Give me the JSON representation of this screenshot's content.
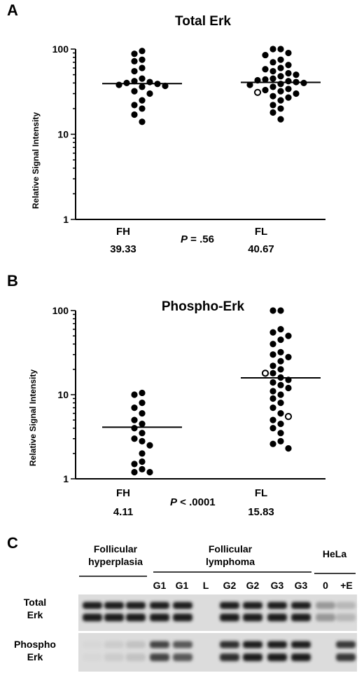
{
  "chart_data": [
    {
      "panel": "A",
      "type": "scatter",
      "title": "Total Erk",
      "ylabel": "Relative Signal Intensity",
      "yscale": "log",
      "ylim": [
        1,
        100
      ],
      "yticks": [
        "1",
        "10",
        "100"
      ],
      "groups": [
        {
          "name": "FH",
          "median": "39.33",
          "median_value": 39.33,
          "points": [
            95,
            88,
            75,
            72,
            60,
            55,
            45,
            42,
            41,
            40,
            39,
            38,
            37,
            36,
            32,
            30,
            25,
            22,
            20,
            17,
            14
          ],
          "open_points": []
        },
        {
          "name": "FL",
          "median": "40.67",
          "median_value": 40.67,
          "points": [
            100,
            100,
            90,
            85,
            75,
            70,
            65,
            60,
            58,
            55,
            52,
            50,
            48,
            45,
            44,
            43,
            42,
            41,
            40,
            39,
            38,
            36,
            34,
            33,
            32,
            30,
            28,
            27,
            25,
            22,
            20,
            18,
            15
          ],
          "open_points": [
            31
          ]
        }
      ],
      "annotation": {
        "label": "P",
        "text": " = .56"
      }
    },
    {
      "panel": "B",
      "type": "scatter",
      "title": "Phospho-Erk",
      "ylabel": "Relative Signal Intensity",
      "yscale": "log",
      "ylim": [
        1,
        100
      ],
      "yticks": [
        "1",
        "10",
        "100"
      ],
      "groups": [
        {
          "name": "FH",
          "median": "4.11",
          "median_value": 4.11,
          "points": [
            10.5,
            10,
            8,
            7,
            6,
            5,
            4.5,
            4,
            3.5,
            3,
            2.8,
            2.5,
            2,
            1.6,
            1.5,
            1.3,
            1.2,
            1.2
          ],
          "open_points": []
        },
        {
          "name": "FL",
          "median": "15.83",
          "median_value": 15.83,
          "points": [
            100,
            100,
            60,
            55,
            50,
            45,
            40,
            32,
            30,
            28,
            25,
            22,
            20,
            18,
            16,
            15,
            14,
            13,
            12,
            11,
            10,
            9,
            8,
            7,
            6,
            5,
            4.5,
            4,
            3.5,
            2.8,
            2.6,
            2.3
          ],
          "open_points": [
            18,
            5.5
          ]
        }
      ],
      "annotation": {
        "label": "P",
        "text": " < .0001"
      }
    }
  ],
  "blot": {
    "panel": "C",
    "groups": [
      {
        "line1": "Follicular",
        "line2": "hyperplasia"
      },
      {
        "line1": "Follicular",
        "line2": "lymphoma"
      },
      {
        "line1": "HeLa",
        "line2": ""
      }
    ],
    "lanes": [
      "G1",
      "G1",
      "L",
      "G2",
      "G2",
      "G3",
      "G3",
      "0",
      "+E"
    ],
    "rows": [
      {
        "line1": "Total",
        "line2": "Erk",
        "band_intensity": [
          0.95,
          0.95,
          0.95,
          0.95,
          0.95,
          0.0,
          0.95,
          0.95,
          0.95,
          0.95,
          0.35,
          0.2
        ]
      },
      {
        "line1": "Phospho",
        "line2": "Erk",
        "band_intensity": [
          0.05,
          0.1,
          0.15,
          0.75,
          0.65,
          0.0,
          0.85,
          0.95,
          0.95,
          0.95,
          0.0,
          0.8
        ]
      }
    ]
  }
}
